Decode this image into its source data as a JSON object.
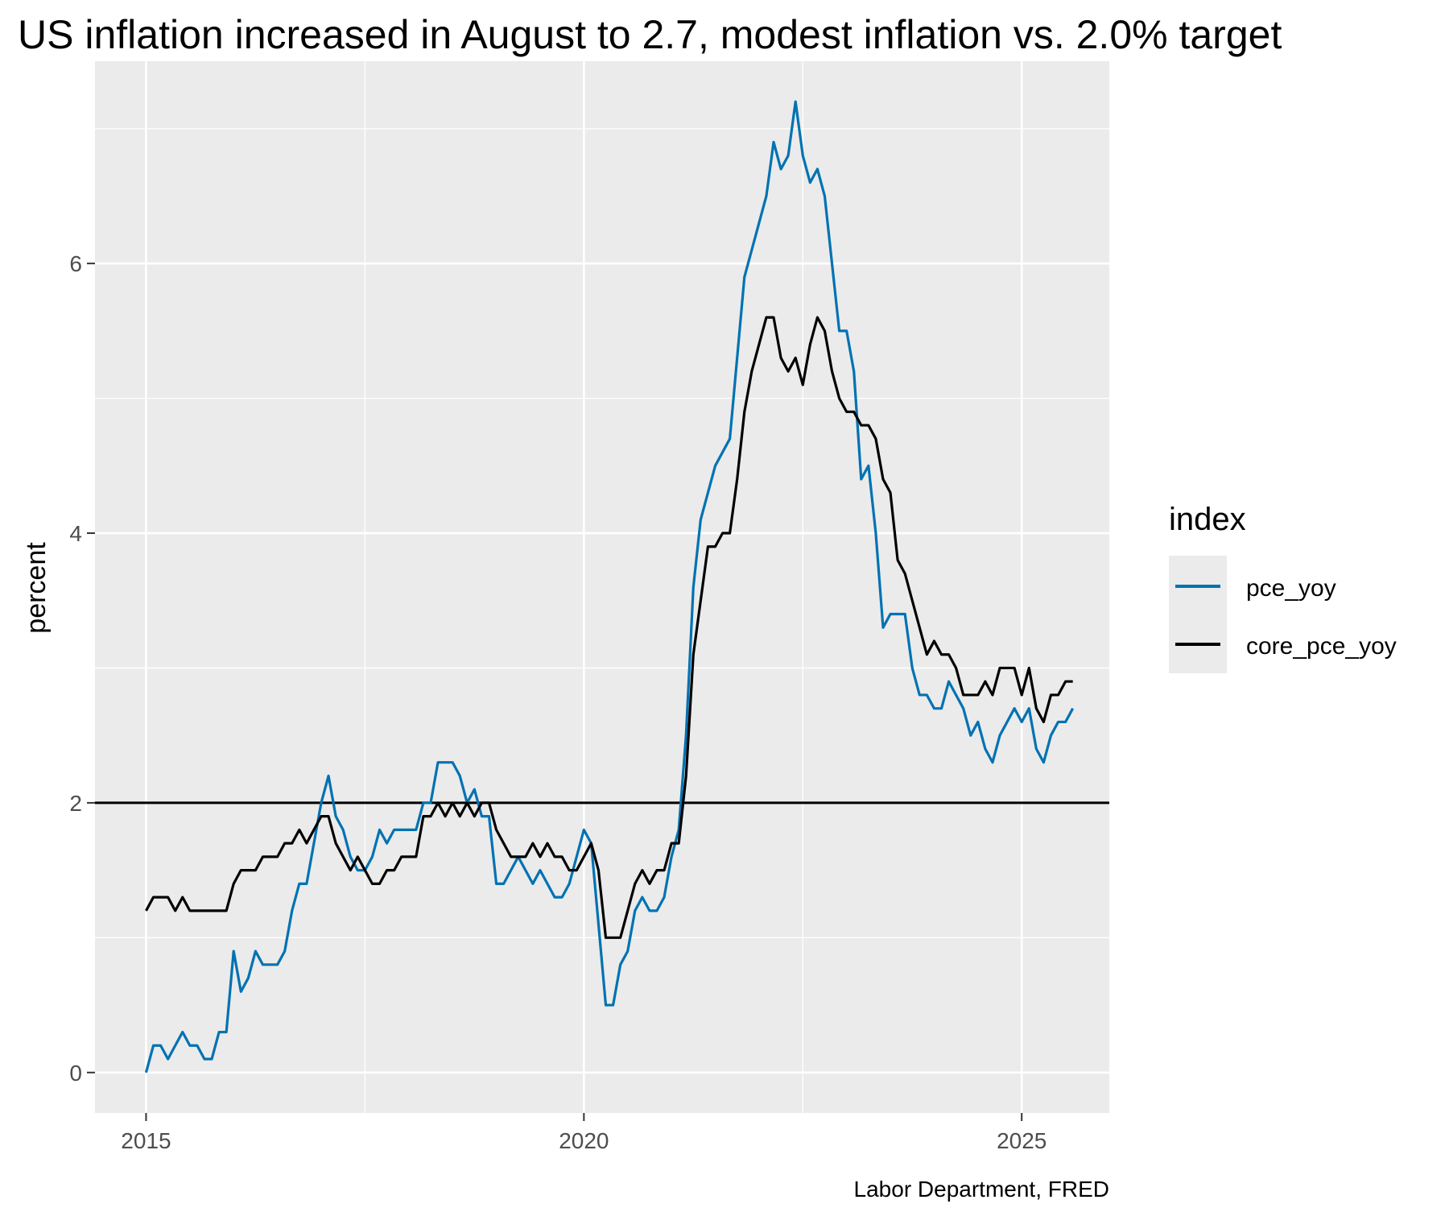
{
  "chart_data": {
    "type": "line",
    "title": "US inflation increased in August to 2.7, modest inflation vs. 2.0% target",
    "xlabel": "",
    "ylabel": "percent",
    "caption": "Labor Department, FRED",
    "x_start": "2015-01",
    "x_frequency": "monthly",
    "xlim": [
      "2014-06",
      "2026-01"
    ],
    "ylim": [
      -0.3,
      7.5
    ],
    "x_ticks": [
      "2015",
      "2020",
      "2025"
    ],
    "y_ticks": [
      0,
      2,
      4,
      6
    ],
    "grid": true,
    "hline": {
      "y": 2.0,
      "color": "#000000"
    },
    "legend": {
      "title": "index",
      "position": "right"
    },
    "series": [
      {
        "name": "pce_yoy",
        "color": "#0072B2",
        "values": [
          0.0,
          0.2,
          0.2,
          0.1,
          0.2,
          0.3,
          0.2,
          0.2,
          0.1,
          0.1,
          0.3,
          0.3,
          0.9,
          0.6,
          0.7,
          0.9,
          0.8,
          0.8,
          0.8,
          0.9,
          1.2,
          1.4,
          1.4,
          1.7,
          2.0,
          2.2,
          1.9,
          1.8,
          1.6,
          1.5,
          1.5,
          1.6,
          1.8,
          1.7,
          1.8,
          1.8,
          1.8,
          1.8,
          2.0,
          2.0,
          2.3,
          2.3,
          2.3,
          2.2,
          2.0,
          2.1,
          1.9,
          1.9,
          1.4,
          1.4,
          1.5,
          1.6,
          1.5,
          1.4,
          1.5,
          1.4,
          1.3,
          1.3,
          1.4,
          1.6,
          1.8,
          1.7,
          1.1,
          0.5,
          0.5,
          0.8,
          0.9,
          1.2,
          1.3,
          1.2,
          1.2,
          1.3,
          1.6,
          1.8,
          2.5,
          3.6,
          4.1,
          4.3,
          4.5,
          4.6,
          4.7,
          5.3,
          5.9,
          6.1,
          6.3,
          6.5,
          6.9,
          6.7,
          6.8,
          7.2,
          6.8,
          6.6,
          6.7,
          6.5,
          6.0,
          5.5,
          5.5,
          5.2,
          4.4,
          4.5,
          4.0,
          3.3,
          3.4,
          3.4,
          3.4,
          3.0,
          2.8,
          2.8,
          2.7,
          2.7,
          2.9,
          2.8,
          2.7,
          2.5,
          2.6,
          2.4,
          2.3,
          2.5,
          2.6,
          2.7,
          2.6,
          2.7,
          2.4,
          2.3,
          2.5,
          2.6,
          2.6,
          2.7
        ]
      },
      {
        "name": "core_pce_yoy",
        "color": "#000000",
        "values": [
          1.2,
          1.3,
          1.3,
          1.3,
          1.2,
          1.3,
          1.2,
          1.2,
          1.2,
          1.2,
          1.2,
          1.2,
          1.4,
          1.5,
          1.5,
          1.5,
          1.6,
          1.6,
          1.6,
          1.7,
          1.7,
          1.8,
          1.7,
          1.8,
          1.9,
          1.9,
          1.7,
          1.6,
          1.5,
          1.6,
          1.5,
          1.4,
          1.4,
          1.5,
          1.5,
          1.6,
          1.6,
          1.6,
          1.9,
          1.9,
          2.0,
          1.9,
          2.0,
          1.9,
          2.0,
          1.9,
          2.0,
          2.0,
          1.8,
          1.7,
          1.6,
          1.6,
          1.6,
          1.7,
          1.6,
          1.7,
          1.6,
          1.6,
          1.5,
          1.5,
          1.6,
          1.7,
          1.5,
          1.0,
          1.0,
          1.0,
          1.2,
          1.4,
          1.5,
          1.4,
          1.5,
          1.5,
          1.7,
          1.7,
          2.2,
          3.1,
          3.5,
          3.9,
          3.9,
          4.0,
          4.0,
          4.4,
          4.9,
          5.2,
          5.4,
          5.6,
          5.6,
          5.3,
          5.2,
          5.3,
          5.1,
          5.4,
          5.6,
          5.5,
          5.2,
          5.0,
          4.9,
          4.9,
          4.8,
          4.8,
          4.7,
          4.4,
          4.3,
          3.8,
          3.7,
          3.5,
          3.3,
          3.1,
          3.2,
          3.1,
          3.1,
          3.0,
          2.8,
          2.8,
          2.8,
          2.9,
          2.8,
          3.0,
          3.0,
          3.0,
          2.8,
          3.0,
          2.7,
          2.6,
          2.8,
          2.8,
          2.9,
          2.9
        ]
      }
    ]
  }
}
